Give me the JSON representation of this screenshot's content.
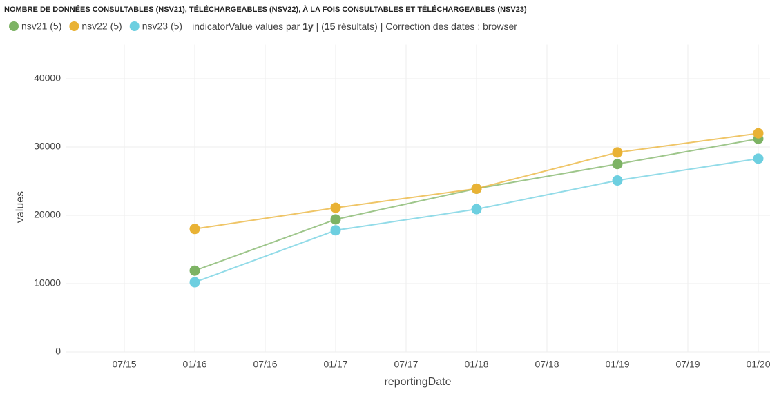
{
  "chart_data": {
    "type": "line",
    "title": "NOMBRE DE DONNÉES CONSULTABLES (NSV21), TÉLÉCHARGEABLES (NSV22), À LA FOIS CONSULTABLES ET TÉLÉCHARGEABLES (NSV23)",
    "subtitle_parts": [
      {
        "text": "indicatorValue values par "
      },
      {
        "text": "1y",
        "bold": true
      },
      {
        "text": " | ("
      },
      {
        "text": "15",
        "bold": true
      },
      {
        "text": " résultats) | Correction des dates : browser"
      }
    ],
    "x_label": "reportingDate",
    "y_label": "values",
    "x": [
      "2016-01",
      "2017-01",
      "2018-01",
      "2019-01",
      "2020-01"
    ],
    "series": [
      {
        "name": "nsv21 (5)",
        "color": "#7db364",
        "values": [
          11900,
          19400,
          23900,
          27500,
          31200
        ]
      },
      {
        "name": "nsv22 (5)",
        "color": "#e9b234",
        "values": [
          18000,
          21100,
          23900,
          29200,
          32000
        ]
      },
      {
        "name": "nsv23 (5)",
        "color": "#6dcfe0",
        "values": [
          10200,
          17800,
          20900,
          25100,
          28300
        ]
      }
    ],
    "xlim": [
      "2015-02",
      "2020-02"
    ],
    "xticks": [
      {
        "value": "2015-07",
        "label": "07/15"
      },
      {
        "value": "2016-01",
        "label": "01/16"
      },
      {
        "value": "2016-07",
        "label": "07/16"
      },
      {
        "value": "2017-01",
        "label": "01/17"
      },
      {
        "value": "2017-07",
        "label": "07/17"
      },
      {
        "value": "2018-01",
        "label": "01/18"
      },
      {
        "value": "2018-07",
        "label": "07/18"
      },
      {
        "value": "2019-01",
        "label": "01/19"
      },
      {
        "value": "2019-07",
        "label": "07/19"
      },
      {
        "value": "2020-01",
        "label": "01/20"
      }
    ],
    "ylim": [
      0,
      45000
    ],
    "yticks": [
      0,
      10000,
      20000,
      30000,
      40000
    ],
    "grid": true
  }
}
